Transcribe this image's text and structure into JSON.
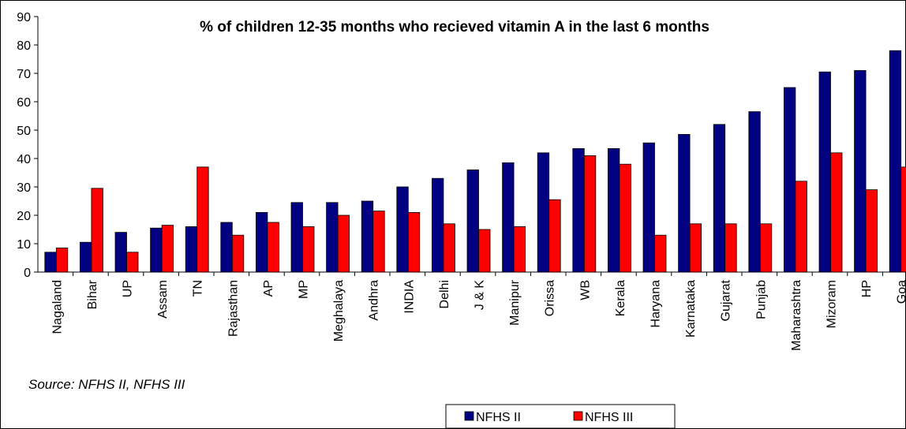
{
  "chart_data": {
    "type": "bar",
    "title": "% of children 12-35 months who recieved vitamin A in the last 6 months",
    "annotation": "Source: NFHS II, NFHS III",
    "categories": [
      "Nagaland",
      "Bihar",
      "UP",
      "Assam",
      "TN",
      "Rajasthan",
      "AP",
      "MP",
      "Meghalaya",
      "Andhra",
      "INDIA",
      "Delhi",
      "J & K",
      "Manipur",
      "Orissa",
      "WB",
      "Kerala",
      "Haryana",
      "Karnataka",
      "Gujarat",
      "Punjab",
      "Maharashtra",
      "Mizoram",
      "HP",
      "Goa"
    ],
    "series": [
      {
        "name": "NFHS II",
        "color": "#000080",
        "values": [
          7,
          10.5,
          14,
          15.5,
          16,
          17.5,
          21,
          24.5,
          24.5,
          25,
          30,
          33,
          36,
          38.5,
          42,
          43.5,
          43.5,
          45.5,
          48.5,
          52,
          56.5,
          65,
          70.5,
          71,
          78
        ]
      },
      {
        "name": "NFHS III",
        "color": "#ff0000",
        "values": [
          8.5,
          29.5,
          7,
          16.5,
          37,
          13,
          17.5,
          16,
          20,
          21.5,
          21,
          17,
          15,
          16,
          25.5,
          41,
          38,
          13,
          17,
          17,
          17,
          32,
          42,
          29,
          37
        ]
      }
    ],
    "ylim": [
      0,
      90
    ],
    "yticks": [
      0,
      10,
      20,
      30,
      40,
      50,
      60,
      70,
      80,
      90
    ],
    "grid": false,
    "legend": "bottom"
  }
}
